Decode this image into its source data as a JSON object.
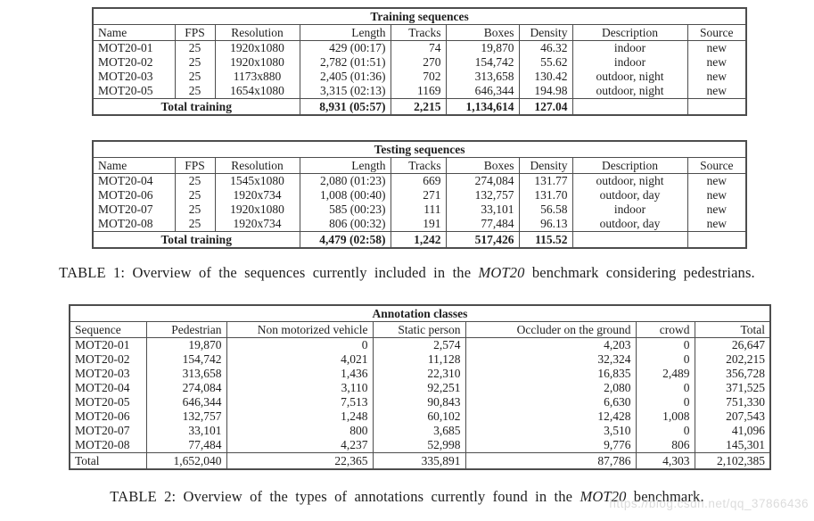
{
  "page": {
    "background": "#ffffff",
    "text_color": "#1f1f1f",
    "border_color": "#4d4d4d",
    "watermark": {
      "text": "https://blog.csdn.net/qq_37866436",
      "color": "#dcdcdc"
    }
  },
  "tables": {
    "training": {
      "title": "Training sequences",
      "columns": [
        "Name",
        "FPS",
        "Resolution",
        "Length",
        "Tracks",
        "Boxes",
        "Density",
        "Description",
        "Source"
      ],
      "rows": [
        [
          "MOT20-01",
          "25",
          "1920x1080",
          "429 (00:17)",
          "74",
          "19,870",
          "46.32",
          "indoor",
          "new"
        ],
        [
          "MOT20-02",
          "25",
          "1920x1080",
          "2,782 (01:51)",
          "270",
          "154,742",
          "55.62",
          "indoor",
          "new"
        ],
        [
          "MOT20-03",
          "25",
          "1173x880",
          "2,405 (01:36)",
          "702",
          "313,658",
          "130.42",
          "outdoor, night",
          "new"
        ],
        [
          "MOT20-05",
          "25",
          "1654x1080",
          "3,315 (02:13)",
          "1169",
          "646,344",
          "194.98",
          "outdoor, night",
          "new"
        ]
      ],
      "total": {
        "label": "Total training",
        "length": "8,931 (05:57)",
        "tracks": "2,215",
        "boxes": "1,134,614",
        "density": "127.04"
      }
    },
    "testing": {
      "title": "Testing sequences",
      "columns": [
        "Name",
        "FPS",
        "Resolution",
        "Length",
        "Tracks",
        "Boxes",
        "Density",
        "Description",
        "Source"
      ],
      "rows": [
        [
          "MOT20-04",
          "25",
          "1545x1080",
          "2,080 (01:23)",
          "669",
          "274,084",
          "131.77",
          "outdoor, night",
          "new"
        ],
        [
          "MOT20-06",
          "25",
          "1920x734",
          "1,008 (00:40)",
          "271",
          "132,757",
          "131.70",
          "outdoor, day",
          "new"
        ],
        [
          "MOT20-07",
          "25",
          "1920x1080",
          "585 (00:23)",
          "111",
          "33,101",
          "56.58",
          "indoor",
          "new"
        ],
        [
          "MOT20-08",
          "25",
          "1920x734",
          "806 (00:32)",
          "191",
          "77,484",
          "96.13",
          "outdoor, day",
          "new"
        ]
      ],
      "total": {
        "label": "Total training",
        "length": "4,479 (02:58)",
        "tracks": "1,242",
        "boxes": "517,426",
        "density": "115.52"
      }
    },
    "annotation": {
      "title": "Annotation classes",
      "columns": [
        "Sequence",
        "Pedestrian",
        "Non motorized vehicle",
        "Static person",
        "Occluder on the ground",
        "crowd",
        "Total"
      ],
      "rows": [
        [
          "MOT20-01",
          "19,870",
          "0",
          "2,574",
          "4,203",
          "0",
          "26,647"
        ],
        [
          "MOT20-02",
          "154,742",
          "4,021",
          "11,128",
          "32,324",
          "0",
          "202,215"
        ],
        [
          "MOT20-03",
          "313,658",
          "1,436",
          "22,310",
          "16,835",
          "2,489",
          "356,728"
        ],
        [
          "MOT20-04",
          "274,084",
          "3,110",
          "92,251",
          "2,080",
          "0",
          "371,525"
        ],
        [
          "MOT20-05",
          "646,344",
          "7,513",
          "90,843",
          "6,630",
          "0",
          "751,330"
        ],
        [
          "MOT20-06",
          "132,757",
          "1,248",
          "60,102",
          "12,428",
          "1,008",
          "207,543"
        ],
        [
          "MOT20-07",
          "33,101",
          "800",
          "3,685",
          "3,510",
          "0",
          "41,096"
        ],
        [
          "MOT20-08",
          "77,484",
          "4,237",
          "52,998",
          "9,776",
          "806",
          "145,301"
        ]
      ],
      "total": [
        "Total",
        "1,652,040",
        "22,365",
        "335,891",
        "87,786",
        "4,303",
        "2,102,385"
      ]
    }
  },
  "captions": {
    "table1": {
      "prefix": "TABLE 1: Overview of the sequences currently included in the ",
      "italic": "MOT20",
      "suffix": " benchmark considering pedestrians."
    },
    "table2": {
      "prefix": "TABLE 2: Overview of the types of annotations currently found in the ",
      "italic": "MOT20",
      "suffix": " benchmark."
    }
  }
}
